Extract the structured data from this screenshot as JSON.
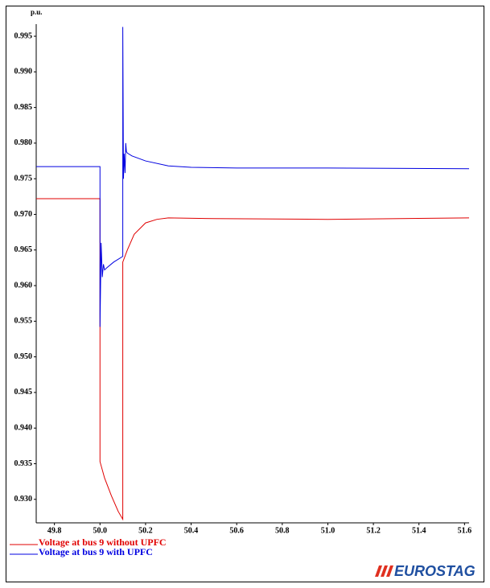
{
  "chart_data": {
    "type": "line",
    "y_label": "p.u.",
    "xlim": [
      49.72,
      51.62
    ],
    "ylim": [
      0.9267,
      0.9967
    ],
    "xticks": [
      49.8,
      {
        "value": 50.0,
        "label": "50.0"
      },
      50.2,
      50.4,
      50.6,
      50.8,
      {
        "value": 51.0,
        "label": "51.0"
      },
      51.2,
      51.4,
      51.6
    ],
    "yticks": [
      {
        "value": 0.93,
        "label": "0.930"
      },
      0.935,
      {
        "value": 0.94,
        "label": "0.940"
      },
      0.945,
      {
        "value": 0.95,
        "label": "0.950"
      },
      0.955,
      {
        "value": 0.96,
        "label": "0.960"
      },
      0.965,
      {
        "value": 0.97,
        "label": "0.970"
      },
      0.975,
      {
        "value": 0.98,
        "label": "0.980"
      },
      0.985,
      {
        "value": 0.99,
        "label": "0.990"
      },
      0.995
    ],
    "grid": false,
    "series": [
      {
        "name": "Voltage at bus 9 without UPFC",
        "color": "#e00000",
        "x": [
          49.72,
          50.0,
          50.0,
          50.02,
          50.05,
          50.08,
          50.1,
          50.1,
          50.12,
          50.15,
          50.2,
          50.25,
          50.3,
          50.5,
          51.0,
          51.62
        ],
        "values": [
          0.9722,
          0.9722,
          0.9353,
          0.933,
          0.9305,
          0.9283,
          0.9272,
          0.9633,
          0.965,
          0.9672,
          0.9688,
          0.9693,
          0.9695,
          0.9694,
          0.9693,
          0.9695
        ]
      },
      {
        "name": "Voltage at bus 9 with UPFC",
        "color": "#0000e0",
        "x": [
          49.72,
          50.0,
          50.0,
          50.005,
          50.01,
          50.015,
          50.02,
          50.03,
          50.06,
          50.1,
          50.1,
          50.103,
          50.106,
          50.11,
          50.113,
          50.116,
          50.12,
          50.14,
          50.2,
          50.3,
          50.4,
          50.6,
          51.0,
          51.62
        ],
        "values": [
          0.9767,
          0.9767,
          0.9542,
          0.966,
          0.9612,
          0.963,
          0.9622,
          0.9625,
          0.9633,
          0.9641,
          0.9963,
          0.975,
          0.9785,
          0.9758,
          0.98,
          0.9788,
          0.9786,
          0.9782,
          0.9775,
          0.9768,
          0.9766,
          0.9765,
          0.9765,
          0.9764
        ]
      }
    ],
    "legend": "bottom-left",
    "logo": "EUROSTAG"
  }
}
